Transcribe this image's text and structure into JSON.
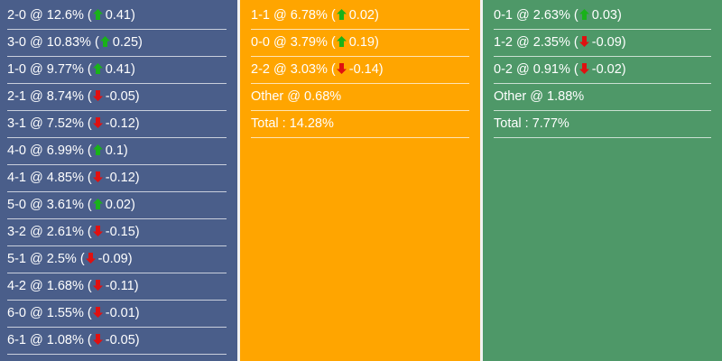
{
  "colors": {
    "up": "#19b219",
    "down": "#e01010",
    "col_home": "#4a5e8a",
    "col_draw": "#ffa500",
    "col_away": "#4e9868"
  },
  "columns": [
    {
      "rows": [
        {
          "score": "2-0",
          "pct": "12.6%",
          "dir": "up",
          "change": "0.41"
        },
        {
          "score": "3-0",
          "pct": "10.83%",
          "dir": "up",
          "change": "0.25"
        },
        {
          "score": "1-0",
          "pct": "9.77%",
          "dir": "up",
          "change": "0.41"
        },
        {
          "score": "2-1",
          "pct": "8.74%",
          "dir": "down",
          "change": "-0.05"
        },
        {
          "score": "3-1",
          "pct": "7.52%",
          "dir": "down",
          "change": "-0.12"
        },
        {
          "score": "4-0",
          "pct": "6.99%",
          "dir": "up",
          "change": "0.1"
        },
        {
          "score": "4-1",
          "pct": "4.85%",
          "dir": "down",
          "change": "-0.12"
        },
        {
          "score": "5-0",
          "pct": "3.61%",
          "dir": "up",
          "change": "0.02"
        },
        {
          "score": "3-2",
          "pct": "2.61%",
          "dir": "down",
          "change": "-0.15"
        },
        {
          "score": "5-1",
          "pct": "2.5%",
          "dir": "down",
          "change": "-0.09"
        },
        {
          "score": "4-2",
          "pct": "1.68%",
          "dir": "down",
          "change": "-0.11"
        },
        {
          "score": "6-0",
          "pct": "1.55%",
          "dir": "down",
          "change": "-0.01"
        },
        {
          "score": "6-1",
          "pct": "1.08%",
          "dir": "down",
          "change": "-0.05"
        }
      ]
    },
    {
      "rows": [
        {
          "score": "1-1",
          "pct": "6.78%",
          "dir": "up",
          "change": "0.02"
        },
        {
          "score": "0-0",
          "pct": "3.79%",
          "dir": "up",
          "change": "0.19"
        },
        {
          "score": "2-2",
          "pct": "3.03%",
          "dir": "down",
          "change": "-0.14"
        }
      ],
      "other": "Other @ 0.68%",
      "total": "Total : 14.28%"
    },
    {
      "rows": [
        {
          "score": "0-1",
          "pct": "2.63%",
          "dir": "up",
          "change": "0.03"
        },
        {
          "score": "1-2",
          "pct": "2.35%",
          "dir": "down",
          "change": "-0.09"
        },
        {
          "score": "0-2",
          "pct": "0.91%",
          "dir": "down",
          "change": "-0.02"
        }
      ],
      "other": "Other @ 1.88%",
      "total": "Total : 7.77%"
    }
  ]
}
